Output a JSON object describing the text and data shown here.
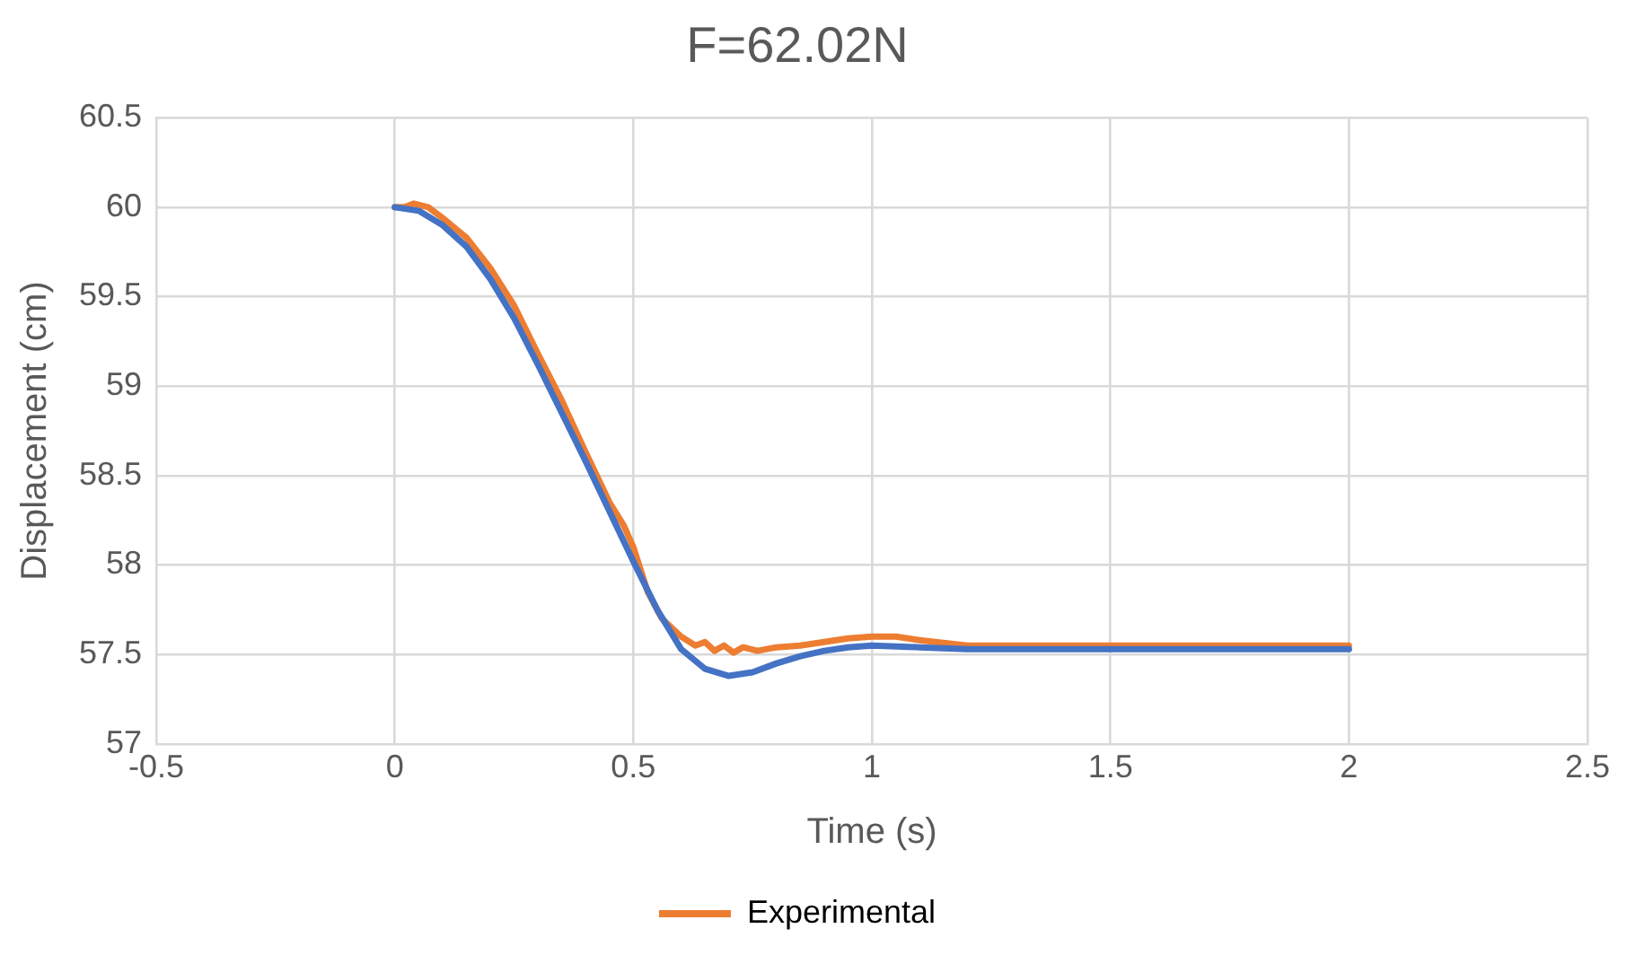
{
  "chart_data": {
    "type": "line",
    "title": "F=62.02N",
    "xlabel": "Time (s)",
    "ylabel": "Displacement (cm)",
    "xlim": [
      -0.5,
      2.5
    ],
    "xticks": [
      -0.5,
      0,
      0.5,
      1,
      1.5,
      2,
      2.5
    ],
    "ylim": [
      57,
      60.5
    ],
    "yticks": [
      57,
      57.5,
      58,
      58.5,
      59,
      59.5,
      60,
      60.5
    ],
    "grid": true,
    "legend": "bottom",
    "marker": "none",
    "line_style": "solid",
    "series": [
      {
        "color": "#4472c4",
        "x": [
          0,
          0.05,
          0.1,
          0.15,
          0.2,
          0.25,
          0.3,
          0.35,
          0.4,
          0.45,
          0.5,
          0.55,
          0.6,
          0.65,
          0.7,
          0.75,
          0.8,
          0.85,
          0.9,
          0.95,
          1,
          1.1,
          1.2,
          1.5,
          2
        ],
        "values": [
          60,
          59.98,
          59.9,
          59.78,
          59.6,
          59.38,
          59.12,
          58.85,
          58.58,
          58.3,
          58.02,
          57.75,
          57.53,
          57.42,
          57.38,
          57.4,
          57.45,
          57.49,
          57.52,
          57.54,
          57.55,
          57.54,
          57.53,
          57.53,
          57.53
        ]
      },
      {
        "name": "Experimental",
        "color": "#ed7d31",
        "x": [
          0,
          0.02,
          0.04,
          0.07,
          0.1,
          0.15,
          0.2,
          0.25,
          0.3,
          0.35,
          0.4,
          0.45,
          0.48,
          0.5,
          0.53,
          0.56,
          0.6,
          0.63,
          0.65,
          0.67,
          0.69,
          0.71,
          0.73,
          0.76,
          0.8,
          0.85,
          0.9,
          0.95,
          1,
          1.05,
          1.1,
          1.2,
          1.5,
          2
        ],
        "values": [
          60,
          60,
          60.02,
          60,
          59.94,
          59.83,
          59.66,
          59.45,
          59.18,
          58.92,
          58.63,
          58.35,
          58.22,
          58.1,
          57.85,
          57.7,
          57.6,
          57.55,
          57.57,
          57.52,
          57.55,
          57.51,
          57.54,
          57.52,
          57.54,
          57.55,
          57.57,
          57.59,
          57.6,
          57.6,
          57.58,
          57.55,
          57.55,
          57.55
        ]
      }
    ]
  }
}
